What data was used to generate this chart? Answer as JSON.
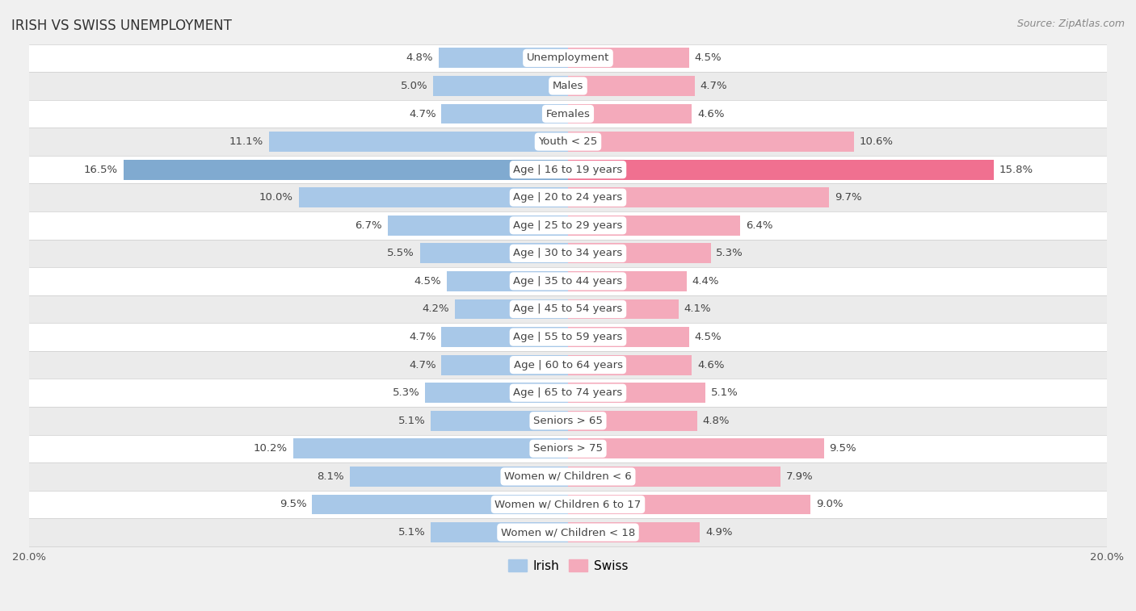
{
  "title": "IRISH VS SWISS UNEMPLOYMENT",
  "source": "Source: ZipAtlas.com",
  "categories": [
    "Unemployment",
    "Males",
    "Females",
    "Youth < 25",
    "Age | 16 to 19 years",
    "Age | 20 to 24 years",
    "Age | 25 to 29 years",
    "Age | 30 to 34 years",
    "Age | 35 to 44 years",
    "Age | 45 to 54 years",
    "Age | 55 to 59 years",
    "Age | 60 to 64 years",
    "Age | 65 to 74 years",
    "Seniors > 65",
    "Seniors > 75",
    "Women w/ Children < 6",
    "Women w/ Children 6 to 17",
    "Women w/ Children < 18"
  ],
  "irish_values": [
    4.8,
    5.0,
    4.7,
    11.1,
    16.5,
    10.0,
    6.7,
    5.5,
    4.5,
    4.2,
    4.7,
    4.7,
    5.3,
    5.1,
    10.2,
    8.1,
    9.5,
    5.1
  ],
  "swiss_values": [
    4.5,
    4.7,
    4.6,
    10.6,
    15.8,
    9.7,
    6.4,
    5.3,
    4.4,
    4.1,
    4.5,
    4.6,
    5.1,
    4.8,
    9.5,
    7.9,
    9.0,
    4.9
  ],
  "irish_color": "#a8c8e8",
  "swiss_color": "#f4aabb",
  "irish_color_highlight": "#80aad0",
  "swiss_color_highlight": "#f07090",
  "bg_color": "#f0f0f0",
  "row_bg_even": "#ffffff",
  "row_bg_odd": "#ebebeb",
  "label_bg": "#ffffff",
  "max_val": 20.0,
  "bar_height": 0.72,
  "label_fontsize": 9.5,
  "value_fontsize": 9.5,
  "title_fontsize": 12,
  "source_fontsize": 9
}
